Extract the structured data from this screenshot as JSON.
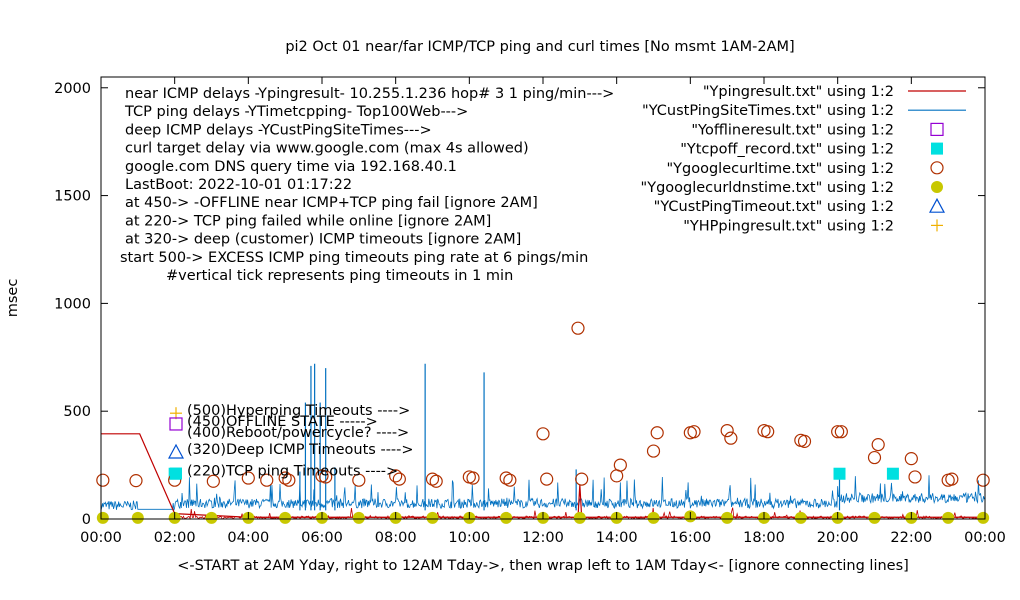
{
  "chart_data": {
    "type": "line",
    "title": "pi2  Oct 01  near/far ICMP/TCP ping and curl times [No msmt 1AM-2AM]",
    "xlabel": "<-START at 2AM Yday, right to 12AM Tday->, then wrap left to 1AM Tday<- [ignore connecting lines]",
    "ylabel": "msec",
    "xlim": [
      0,
      24
    ],
    "ylim": [
      0,
      2050
    ],
    "x_ticks": [
      "00:00",
      "02:00",
      "04:00",
      "06:00",
      "08:00",
      "10:00",
      "12:00",
      "14:00",
      "16:00",
      "18:00",
      "20:00",
      "22:00",
      "00:00"
    ],
    "y_ticks": [
      "0",
      "500",
      "1000",
      "1500",
      "2000"
    ],
    "y_tick_values": [
      0,
      500,
      1000,
      1500,
      2000
    ],
    "annotations": [
      "near ICMP delays -Ypingresult- 10.255.1.236 hop# 3 1 ping/min--->",
      "TCP ping delays -YTimetcpping- Top100Web--->",
      "deep ICMP delays -YCustPingSiteTimes--->",
      "curl target delay via www.google.com (max 4s allowed)",
      "google.com DNS query time via 192.168.40.1",
      "LastBoot: 2022-10-01 01:17:22",
      "at 450-> -OFFLINE near ICMP+TCP ping fail [ignore 2AM]",
      "at 220-> TCP ping failed while online [ignore 2AM]",
      "at 320-> deep (customer) ICMP timeouts [ignore 2AM]",
      "start 500-> EXCESS ICMP ping timeouts ping rate at 6 pings/min",
      "#vertical tick represents ping timeouts in 1 min"
    ],
    "legend_position": "top-right",
    "series": [
      {
        "name": "\"Ypingresult.txt\" using 1:2",
        "color": "#c00000",
        "style": "line",
        "x": [
          0,
          1,
          1.05,
          2,
          4,
          6,
          8,
          10,
          12,
          12.95,
          13.0,
          13.05,
          14,
          16,
          18,
          20,
          22,
          24
        ],
        "y": [
          395,
          395,
          395,
          25,
          8,
          8,
          8,
          8,
          8,
          8,
          160,
          8,
          8,
          8,
          8,
          8,
          8,
          8
        ]
      },
      {
        "name": "\"YCustPingSiteTimes.txt\" using 1:2",
        "color": "#0070c0",
        "style": "line",
        "x": [
          0,
          0.9,
          1.9,
          2.0,
          4.0,
          5.4,
          5.55,
          5.7,
          5.8,
          5.95,
          6.1,
          6.35,
          8.8,
          10.4,
          12.9,
          13.0,
          16.6,
          18.2,
          20.0,
          20.05,
          21.4,
          24
        ],
        "y": [
          45,
          45,
          45,
          45,
          50,
          220,
          540,
          710,
          720,
          540,
          700,
          240,
          720,
          680,
          230,
          85,
          110,
          115,
          90,
          200,
          110,
          90
        ]
      },
      {
        "name": "\"Yofflineresult.txt\" using 1:2",
        "color": "#9400d3",
        "style": "open-square",
        "x": [],
        "y": []
      },
      {
        "name": "\"Ytcpoff_record.txt\" using 1:2",
        "color": "#00e0e0",
        "style": "filled-square",
        "x": [
          2.0,
          20.05,
          21.5
        ],
        "y": [
          210,
          210,
          210
        ]
      },
      {
        "name": "\"Ygooglecurltime.txt\" using 1:2",
        "color": "#b03000",
        "style": "open-circle",
        "x": [
          0.05,
          0.95,
          2.0,
          3.05,
          4.0,
          4.5,
          5.0,
          5.1,
          6.0,
          6.1,
          7.0,
          8.0,
          8.1,
          9.0,
          9.1,
          10.0,
          10.1,
          11.0,
          11.1,
          12.0,
          12.1,
          12.95,
          13.05,
          14.0,
          14.1,
          15.0,
          15.1,
          16.0,
          16.1,
          17.0,
          17.1,
          18.0,
          18.1,
          19.0,
          19.1,
          20.0,
          20.1,
          21.0,
          21.1,
          22.0,
          22.1,
          23.0,
          23.1,
          23.95
        ],
        "y": [
          180,
          178,
          180,
          175,
          190,
          180,
          190,
          180,
          200,
          195,
          180,
          200,
          185,
          185,
          175,
          195,
          190,
          190,
          180,
          395,
          185,
          885,
          185,
          200,
          250,
          315,
          400,
          400,
          405,
          410,
          375,
          410,
          405,
          365,
          360,
          405,
          405,
          285,
          345,
          280,
          195,
          180,
          185,
          180
        ]
      },
      {
        "name": "\"Ygooglecurldnstime.txt\" using 1:2",
        "color": "#c8c800",
        "style": "filled-circle",
        "x": [
          0.05,
          1.0,
          2.0,
          3.0,
          4.0,
          5.0,
          6.0,
          7.0,
          8.0,
          9.0,
          10.0,
          11.0,
          12.0,
          13.0,
          14.0,
          15.0,
          16.0,
          17.0,
          18.0,
          19.0,
          20.0,
          21.0,
          22.0,
          23.0,
          23.95
        ],
        "y": [
          5,
          5,
          5,
          5,
          5,
          5,
          5,
          5,
          5,
          5,
          5,
          5,
          5,
          5,
          5,
          5,
          12,
          5,
          5,
          5,
          5,
          5,
          5,
          5,
          5
        ]
      },
      {
        "name": "\"YCustPingTimeout.txt\" using 1:2",
        "color": "#0050d0",
        "style": "open-triangle",
        "x": [],
        "y": []
      },
      {
        "name": "\"YHPpingresult.txt\" using 1:2",
        "color": "#f0b000",
        "style": "plus",
        "x": [],
        "y": []
      }
    ],
    "key_labels": [
      {
        "label": "(500)Hyperping Timeouts ---->",
        "value": 500,
        "glyph": "plus",
        "color": "#f0b000"
      },
      {
        "label": "(450)OFFLINE STATE ----->",
        "value": 450,
        "glyph": "open-square",
        "color": "#9400d3"
      },
      {
        "label": "(400)Reboot/powercycle? ---->",
        "value": 400,
        "glyph": "none",
        "color": "#000000"
      },
      {
        "label": "(320)Deep ICMP Timeouts ---->",
        "value": 320,
        "glyph": "open-triangle",
        "color": "#0050d0"
      },
      {
        "label": "(220)TCP ping Timeouts ---->",
        "value": 220,
        "glyph": "filled-square",
        "color": "#00e0e0"
      }
    ],
    "grid": false
  }
}
